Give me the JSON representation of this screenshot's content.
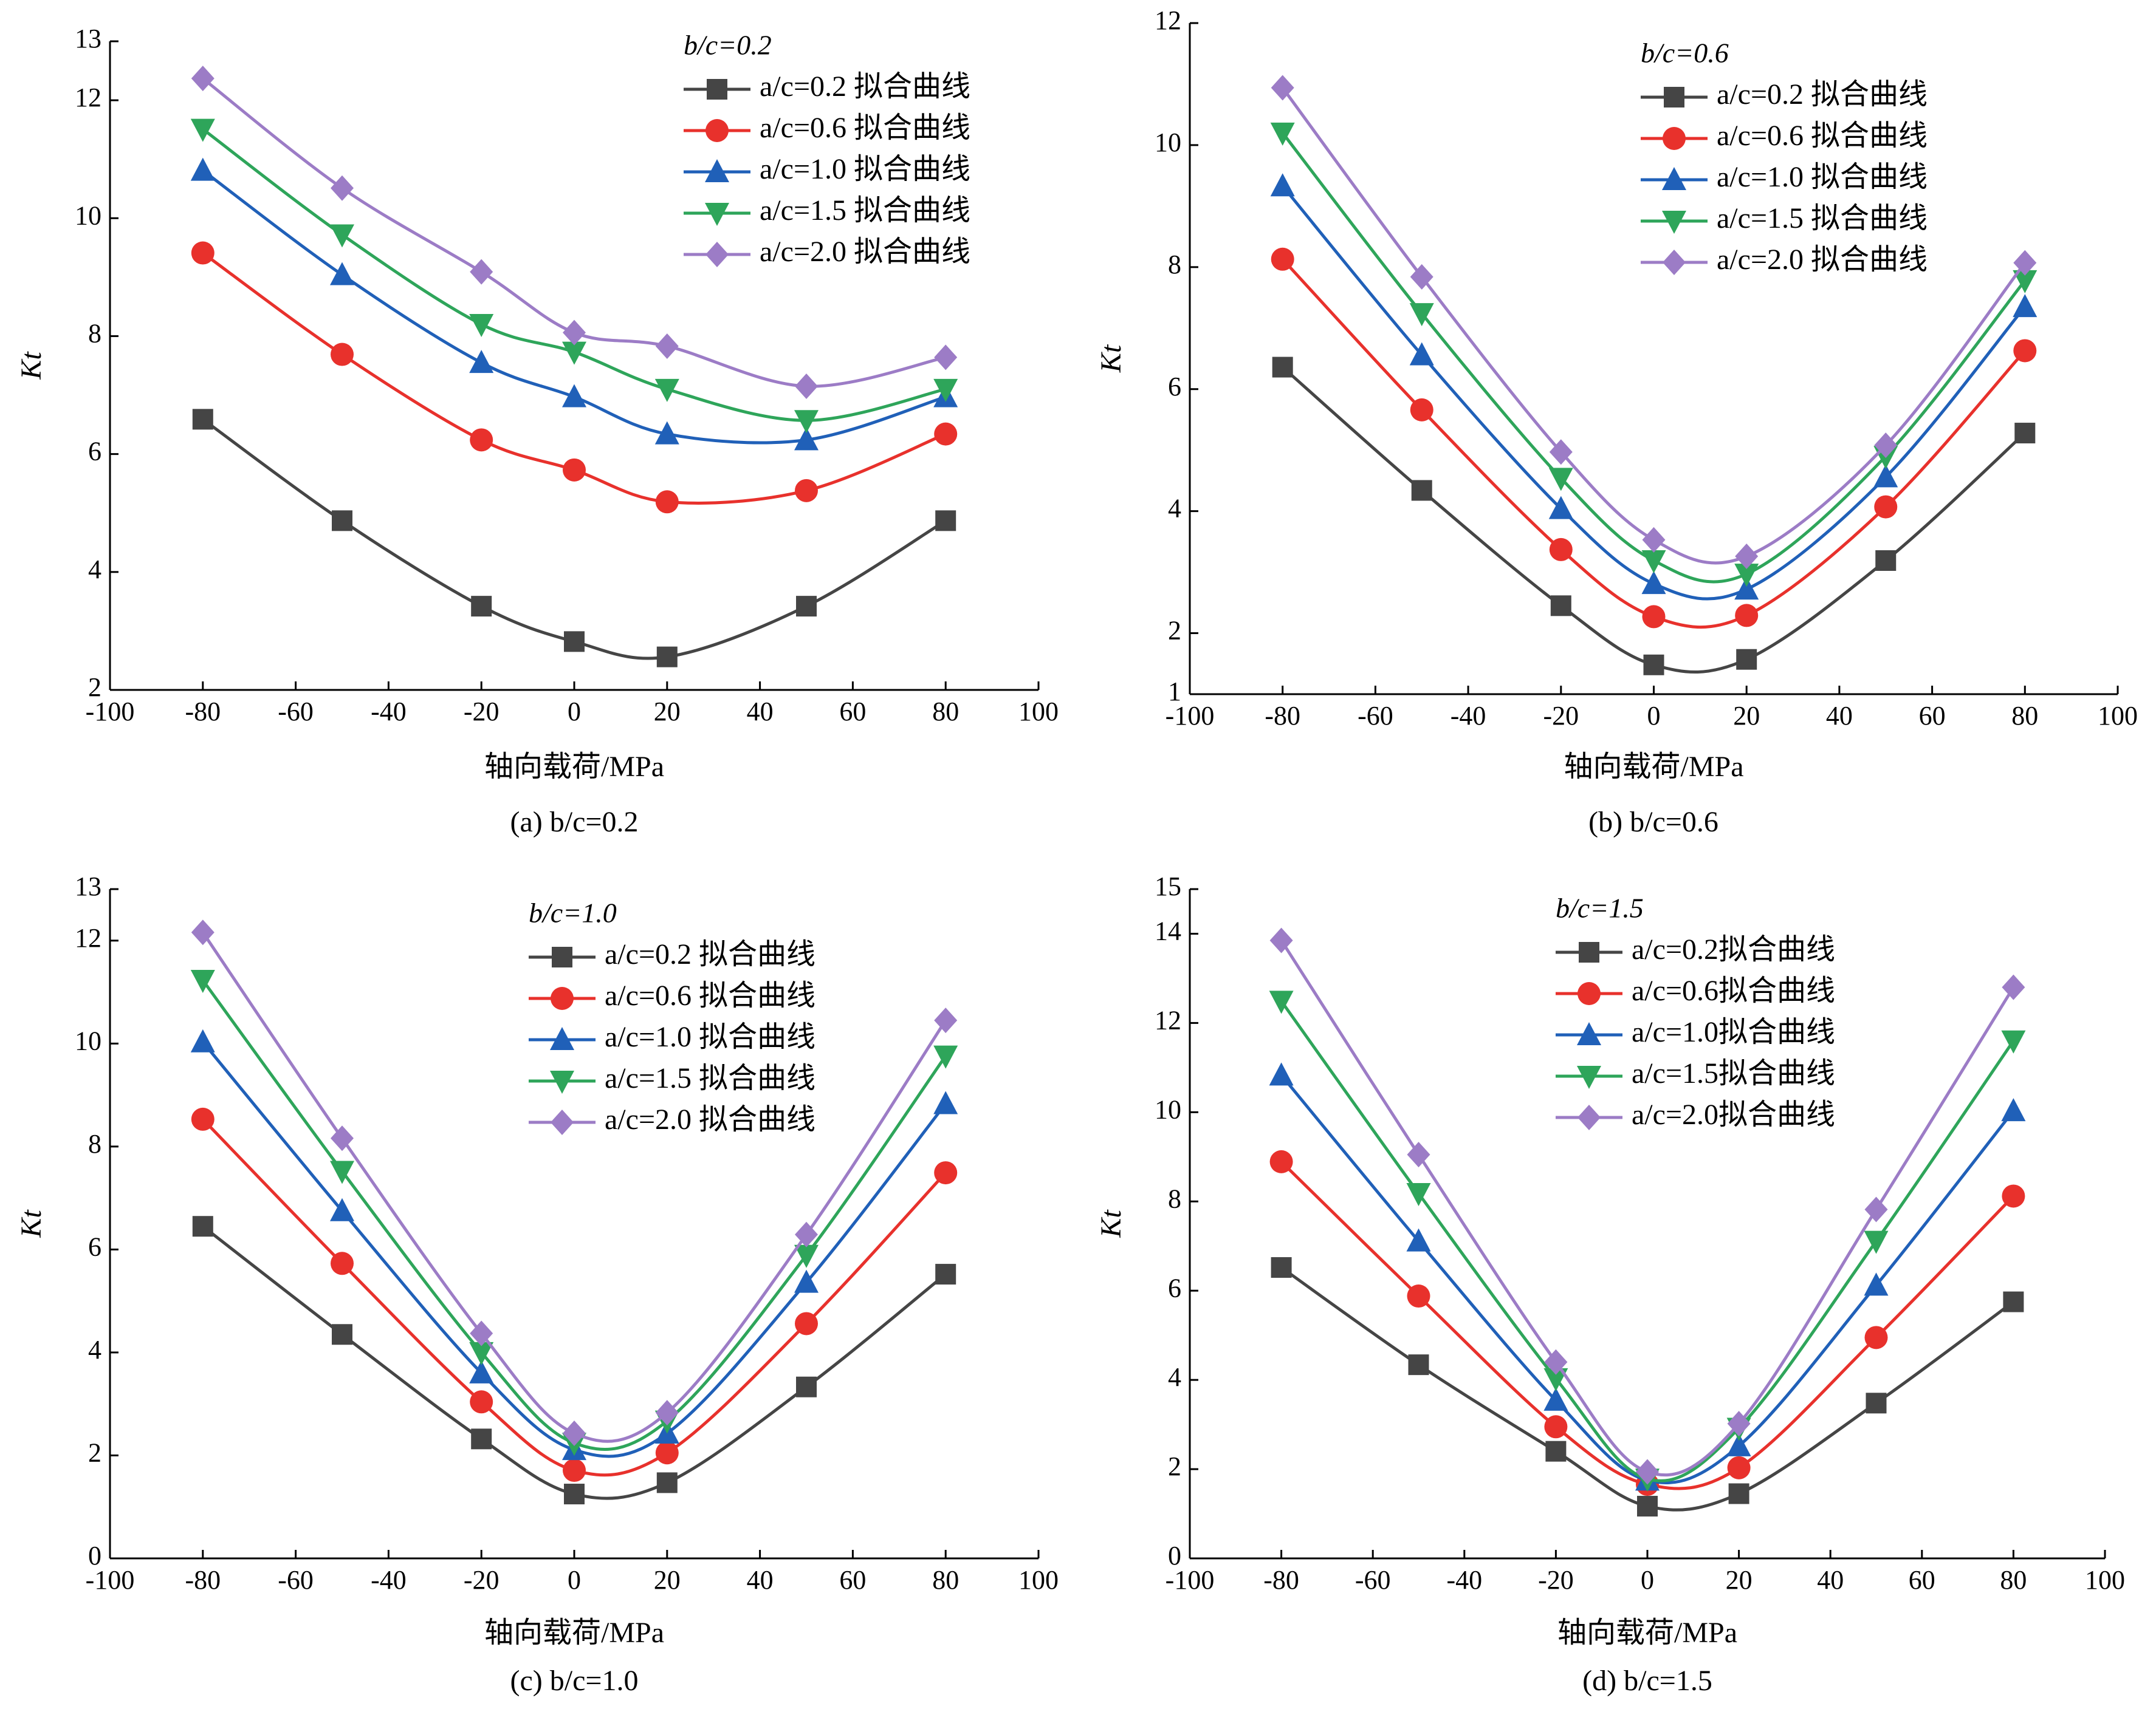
{
  "chart_data": [
    {
      "type": "line",
      "caption": "(a) b/c=0.2",
      "annotation": "b/c=0.2",
      "x_label": "轴向载荷/MPa",
      "y_label": "Kt",
      "x": [
        -80,
        -50,
        -20,
        0,
        20,
        50,
        80
      ],
      "xlim": [
        -100,
        100
      ],
      "xticks": [
        -100,
        -80,
        -60,
        -40,
        -20,
        0,
        20,
        40,
        60,
        80,
        100
      ],
      "ylim": [
        2,
        13
      ],
      "yticks": [
        2,
        4,
        6,
        8,
        10,
        12,
        13
      ],
      "series": [
        {
          "name": "a/c=0.2 拟合曲线",
          "color": "#454545",
          "marker": "square",
          "values": [
            6.59,
            4.87,
            3.42,
            2.82,
            2.56,
            3.42,
            4.87
          ]
        },
        {
          "name": "a/c=0.6 拟合曲线",
          "color": "#e8312c",
          "marker": "circle",
          "values": [
            9.41,
            7.69,
            6.24,
            5.73,
            5.19,
            5.38,
            6.34
          ]
        },
        {
          "name": "a/c=1.0 拟合曲线",
          "color": "#2060b8",
          "marker": "triangle-up",
          "values": [
            10.81,
            9.04,
            7.55,
            6.97,
            6.34,
            6.24,
            6.97
          ]
        },
        {
          "name": "a/c=1.5 拟合曲线",
          "color": "#2ea55a",
          "marker": "triangle-down",
          "values": [
            11.51,
            9.72,
            8.2,
            7.73,
            7.1,
            6.57,
            7.1
          ]
        },
        {
          "name": "a/c=2.0 拟合曲线",
          "color": "#9c7cc6",
          "marker": "diamond",
          "values": [
            12.37,
            10.51,
            9.09,
            8.06,
            7.83,
            7.15,
            7.64
          ]
        }
      ]
    },
    {
      "type": "line",
      "caption": "(b) b/c=0.6",
      "annotation": "b/c=0.6",
      "x_label": "轴向载荷/MPa",
      "y_label": "Kt",
      "x": [
        -80,
        -50,
        -20,
        0,
        20,
        50,
        80
      ],
      "xlim": [
        -100,
        100
      ],
      "xticks": [
        -100,
        -80,
        -60,
        -40,
        -20,
        0,
        20,
        40,
        60,
        80,
        100
      ],
      "ylim": [
        1,
        12
      ],
      "yticks": [
        1,
        2,
        4,
        6,
        8,
        10,
        12
      ],
      "series": [
        {
          "name": "a/c=0.2 拟合曲线",
          "color": "#454545",
          "marker": "square",
          "values": [
            6.36,
            4.34,
            2.45,
            1.48,
            1.57,
            3.19,
            5.28
          ]
        },
        {
          "name": "a/c=0.6 拟合曲线",
          "color": "#e8312c",
          "marker": "circle",
          "values": [
            8.13,
            5.66,
            3.37,
            2.27,
            2.29,
            4.07,
            6.63
          ]
        },
        {
          "name": "a/c=1.0 拟合曲线",
          "color": "#2060b8",
          "marker": "triangle-up",
          "values": [
            9.33,
            6.56,
            4.04,
            2.81,
            2.72,
            4.56,
            7.35
          ]
        },
        {
          "name": "a/c=1.5 拟合曲线",
          "color": "#2ea55a",
          "marker": "triangle-down",
          "values": [
            10.2,
            7.24,
            4.54,
            3.19,
            2.97,
            4.9,
            7.78
          ]
        },
        {
          "name": "a/c=2.0 拟合曲线",
          "color": "#9c7cc6",
          "marker": "diamond",
          "values": [
            10.94,
            7.84,
            4.97,
            3.53,
            3.26,
            5.08,
            8.07
          ]
        }
      ]
    },
    {
      "type": "line",
      "caption": "(c) b/c=1.0",
      "annotation": "b/c=1.0",
      "x_label": "轴向载荷/MPa",
      "y_label": "Kt",
      "x": [
        -80,
        -50,
        -20,
        0,
        20,
        50,
        80
      ],
      "xlim": [
        -100,
        100
      ],
      "xticks": [
        -100,
        -80,
        -60,
        -40,
        -20,
        0,
        20,
        40,
        60,
        80,
        100
      ],
      "ylim": [
        0,
        13
      ],
      "yticks": [
        0,
        2,
        4,
        6,
        8,
        10,
        12,
        13
      ],
      "series": [
        {
          "name": "a/c=0.2 拟合曲线",
          "color": "#454545",
          "marker": "square",
          "values": [
            6.45,
            4.35,
            2.32,
            1.25,
            1.47,
            3.33,
            5.52
          ]
        },
        {
          "name": "a/c=0.6 拟合曲线",
          "color": "#e8312c",
          "marker": "circle",
          "values": [
            8.53,
            5.73,
            3.04,
            1.71,
            2.05,
            4.56,
            7.49
          ]
        },
        {
          "name": "a/c=1.0 拟合曲线",
          "color": "#2060b8",
          "marker": "triangle-up",
          "values": [
            10.03,
            6.75,
            3.6,
            2.11,
            2.43,
            5.36,
            8.83
          ]
        },
        {
          "name": "a/c=1.5 拟合曲线",
          "color": "#2ea55a",
          "marker": "triangle-down",
          "values": [
            11.23,
            7.52,
            4.0,
            2.24,
            2.67,
            5.89,
            9.76
          ]
        },
        {
          "name": "a/c=2.0 拟合曲线",
          "color": "#9c7cc6",
          "marker": "diamond",
          "values": [
            12.16,
            8.16,
            4.37,
            2.43,
            2.83,
            6.29,
            10.45
          ]
        }
      ]
    },
    {
      "type": "line",
      "caption": "(d) b/c=1.5",
      "annotation": "b/c=1.5",
      "x_label": "轴向载荷/MPa",
      "y_label": "Kt",
      "x": [
        -80,
        -50,
        -20,
        0,
        20,
        50,
        80
      ],
      "xlim": [
        -100,
        100
      ],
      "xticks": [
        -100,
        -80,
        -60,
        -40,
        -20,
        0,
        20,
        40,
        60,
        80,
        100
      ],
      "ylim": [
        0,
        15
      ],
      "yticks": [
        0,
        2,
        4,
        6,
        8,
        10,
        12,
        14,
        15
      ],
      "series": [
        {
          "name": "a/c=0.2拟合曲线",
          "color": "#454545",
          "marker": "square",
          "values": [
            6.52,
            4.34,
            2.4,
            1.17,
            1.45,
            3.48,
            5.75
          ]
        },
        {
          "name": "a/c=0.6拟合曲线",
          "color": "#e8312c",
          "marker": "circle",
          "values": [
            8.89,
            5.88,
            2.95,
            1.66,
            2.03,
            4.95,
            8.12
          ]
        },
        {
          "name": "a/c=1.0拟合曲线",
          "color": "#2060b8",
          "marker": "triangle-up",
          "values": [
            10.83,
            7.11,
            3.54,
            1.75,
            2.52,
            6.12,
            10.03
          ]
        },
        {
          "name": "a/c=1.5拟合曲线",
          "color": "#2ea55a",
          "marker": "triangle-down",
          "values": [
            12.49,
            8.18,
            4.03,
            1.78,
            2.92,
            7.11,
            11.6
          ]
        },
        {
          "name": "a/c=2.0拟合曲线",
          "color": "#9c7cc6",
          "marker": "diamond",
          "values": [
            13.85,
            9.05,
            4.4,
            1.94,
            3.02,
            7.82,
            12.8
          ]
        }
      ]
    }
  ]
}
